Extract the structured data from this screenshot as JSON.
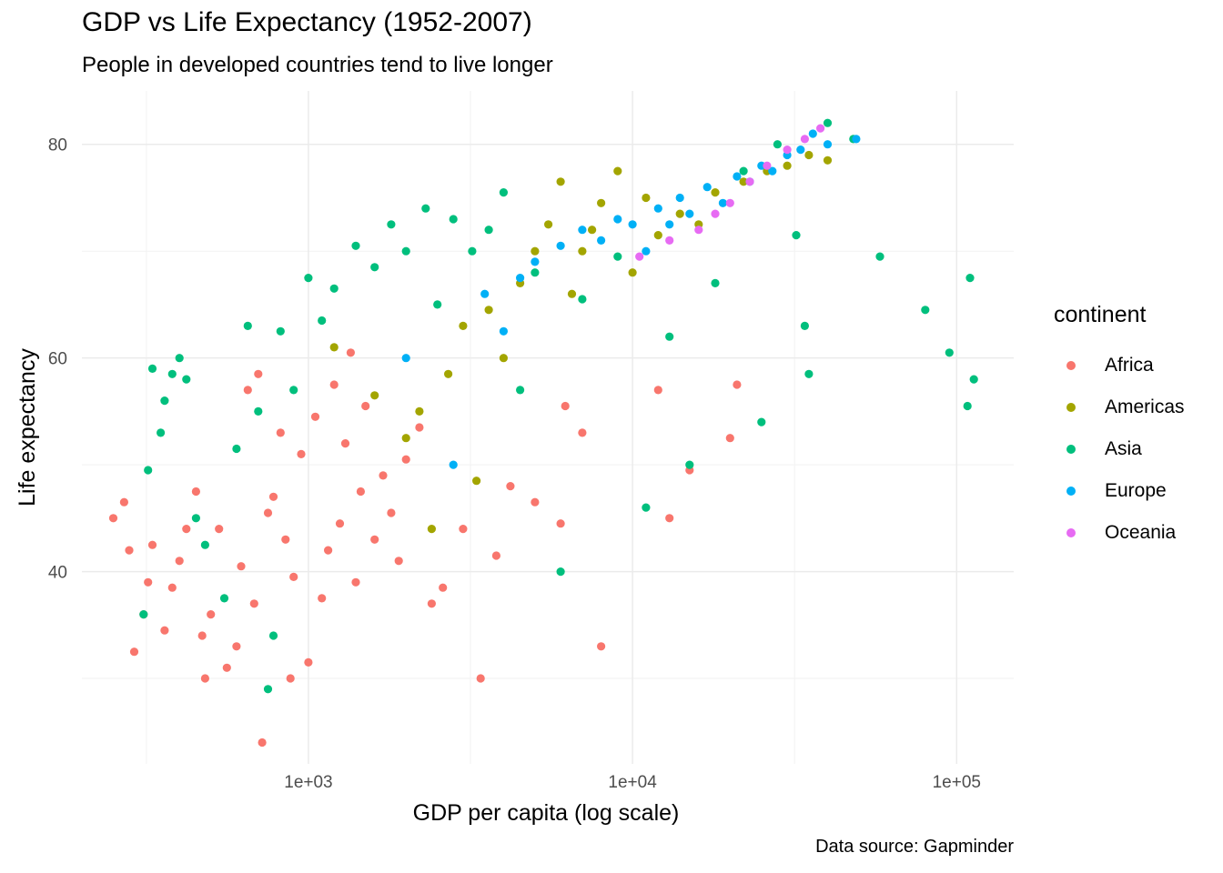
{
  "chart_data": {
    "type": "scatter",
    "title": "GDP vs Life Expectancy (1952-2007)",
    "subtitle": "People in developed countries tend to live longer",
    "caption": "Data source: Gapminder",
    "xlabel": "GDP per capita (log scale)",
    "ylabel": "Life expectancy",
    "x_scale": "log10",
    "xlim": [
      200,
      150000
    ],
    "ylim": [
      22,
      85
    ],
    "x_ticks": [
      1000,
      10000,
      100000
    ],
    "x_tick_labels": [
      "1e+03",
      "1e+04",
      "1e+05"
    ],
    "y_ticks": [
      40,
      60,
      80
    ],
    "y_tick_labels": [
      "40",
      "60",
      "80"
    ],
    "grid": true,
    "legend": {
      "title": "continent",
      "position": "right"
    },
    "series": [
      {
        "name": "Africa",
        "color": "#F8766D",
        "points": [
          [
            250,
            45
          ],
          [
            270,
            46.5
          ],
          [
            280,
            42
          ],
          [
            290,
            32.5
          ],
          [
            310,
            36
          ],
          [
            320,
            39
          ],
          [
            330,
            42.5
          ],
          [
            360,
            34.5
          ],
          [
            380,
            38.5
          ],
          [
            400,
            41
          ],
          [
            420,
            44
          ],
          [
            450,
            47.5
          ],
          [
            470,
            34
          ],
          [
            480,
            30
          ],
          [
            500,
            36
          ],
          [
            530,
            44
          ],
          [
            560,
            31
          ],
          [
            600,
            33
          ],
          [
            620,
            40.5
          ],
          [
            650,
            57
          ],
          [
            680,
            37
          ],
          [
            700,
            58.5
          ],
          [
            720,
            24
          ],
          [
            750,
            45.5
          ],
          [
            780,
            47
          ],
          [
            820,
            53
          ],
          [
            850,
            43
          ],
          [
            880,
            30
          ],
          [
            900,
            39.5
          ],
          [
            950,
            51
          ],
          [
            1000,
            31.5
          ],
          [
            1050,
            54.5
          ],
          [
            1100,
            37.5
          ],
          [
            1150,
            42
          ],
          [
            1200,
            57.5
          ],
          [
            1250,
            44.5
          ],
          [
            1300,
            52
          ],
          [
            1350,
            60.5
          ],
          [
            1400,
            39
          ],
          [
            1450,
            47.5
          ],
          [
            1500,
            55.5
          ],
          [
            1600,
            43
          ],
          [
            1700,
            49
          ],
          [
            1800,
            45.5
          ],
          [
            1900,
            41
          ],
          [
            2000,
            50.5
          ],
          [
            2200,
            53.5
          ],
          [
            2400,
            37
          ],
          [
            2600,
            38.5
          ],
          [
            3000,
            44
          ],
          [
            3400,
            30
          ],
          [
            3800,
            41.5
          ],
          [
            4200,
            48
          ],
          [
            5000,
            46.5
          ],
          [
            6000,
            44.5
          ],
          [
            6200,
            55.5
          ],
          [
            7000,
            53
          ],
          [
            8000,
            33
          ],
          [
            12000,
            57
          ],
          [
            13000,
            45
          ],
          [
            15000,
            49.5
          ],
          [
            20000,
            52.5
          ],
          [
            21000,
            57.5
          ]
        ]
      },
      {
        "name": "Americas",
        "color": "#A3A500",
        "points": [
          [
            1200,
            61
          ],
          [
            1600,
            56.5
          ],
          [
            2000,
            52.5
          ],
          [
            2200,
            55
          ],
          [
            2400,
            44
          ],
          [
            2700,
            58.5
          ],
          [
            3000,
            63
          ],
          [
            3300,
            48.5
          ],
          [
            3600,
            64.5
          ],
          [
            4000,
            60
          ],
          [
            4500,
            67
          ],
          [
            5000,
            70
          ],
          [
            5500,
            72.5
          ],
          [
            6000,
            76.5
          ],
          [
            6500,
            66
          ],
          [
            7000,
            70
          ],
          [
            7500,
            72
          ],
          [
            8000,
            74.5
          ],
          [
            9000,
            77.5
          ],
          [
            10000,
            68
          ],
          [
            11000,
            75
          ],
          [
            12000,
            71.5
          ],
          [
            14000,
            73.5
          ],
          [
            16000,
            72.5
          ],
          [
            18000,
            75.5
          ],
          [
            22000,
            76.5
          ],
          [
            26000,
            77.5
          ],
          [
            30000,
            78
          ],
          [
            35000,
            79
          ],
          [
            40000,
            78.5
          ]
        ]
      },
      {
        "name": "Asia",
        "color": "#00BF7D",
        "points": [
          [
            310,
            36
          ],
          [
            320,
            49.5
          ],
          [
            330,
            59
          ],
          [
            350,
            53
          ],
          [
            360,
            56
          ],
          [
            380,
            58.5
          ],
          [
            400,
            60
          ],
          [
            420,
            58
          ],
          [
            450,
            45
          ],
          [
            480,
            42.5
          ],
          [
            550,
            37.5
          ],
          [
            600,
            51.5
          ],
          [
            650,
            63
          ],
          [
            700,
            55
          ],
          [
            750,
            29
          ],
          [
            780,
            34
          ],
          [
            820,
            62.5
          ],
          [
            900,
            57
          ],
          [
            1000,
            67.5
          ],
          [
            1100,
            63.5
          ],
          [
            1200,
            66.5
          ],
          [
            1400,
            70.5
          ],
          [
            1600,
            68.5
          ],
          [
            1800,
            72.5
          ],
          [
            2000,
            70
          ],
          [
            2300,
            74
          ],
          [
            2500,
            65
          ],
          [
            2800,
            73
          ],
          [
            3200,
            70
          ],
          [
            3600,
            72
          ],
          [
            4000,
            75.5
          ],
          [
            4500,
            57
          ],
          [
            5000,
            68
          ],
          [
            6000,
            40
          ],
          [
            7000,
            65.5
          ],
          [
            9000,
            69.5
          ],
          [
            11000,
            46
          ],
          [
            13000,
            62
          ],
          [
            15000,
            50
          ],
          [
            18000,
            67
          ],
          [
            22000,
            77.5
          ],
          [
            25000,
            54
          ],
          [
            28000,
            80
          ],
          [
            32000,
            71.5
          ],
          [
            34000,
            63
          ],
          [
            35000,
            58.5
          ],
          [
            40000,
            82
          ],
          [
            48000,
            80.5
          ],
          [
            58000,
            69.5
          ],
          [
            80000,
            64.5
          ],
          [
            95000,
            60.5
          ],
          [
            108000,
            55.5
          ],
          [
            110000,
            67.5
          ],
          [
            113000,
            58
          ]
        ]
      },
      {
        "name": "Europe",
        "color": "#00B0F6",
        "points": [
          [
            2000,
            60
          ],
          [
            2800,
            50
          ],
          [
            3500,
            66
          ],
          [
            4000,
            62.5
          ],
          [
            4500,
            67.5
          ],
          [
            5000,
            69
          ],
          [
            6000,
            70.5
          ],
          [
            7000,
            72
          ],
          [
            8000,
            71
          ],
          [
            9000,
            73
          ],
          [
            10000,
            72.5
          ],
          [
            11000,
            70
          ],
          [
            12000,
            74
          ],
          [
            13000,
            72.5
          ],
          [
            14000,
            75
          ],
          [
            15000,
            73.5
          ],
          [
            17000,
            76
          ],
          [
            19000,
            74.5
          ],
          [
            21000,
            77
          ],
          [
            23000,
            76.5
          ],
          [
            25000,
            78
          ],
          [
            27000,
            77.5
          ],
          [
            30000,
            79
          ],
          [
            33000,
            79.5
          ],
          [
            36000,
            81
          ],
          [
            40000,
            80
          ],
          [
            49000,
            80.5
          ]
        ]
      },
      {
        "name": "Oceania",
        "color": "#E76BF3",
        "points": [
          [
            10500,
            69.5
          ],
          [
            13000,
            71
          ],
          [
            16000,
            72
          ],
          [
            18000,
            73.5
          ],
          [
            20000,
            74.5
          ],
          [
            23000,
            76.5
          ],
          [
            26000,
            78
          ],
          [
            30000,
            79.5
          ],
          [
            34000,
            80.5
          ],
          [
            38000,
            81.5
          ]
        ]
      }
    ]
  }
}
